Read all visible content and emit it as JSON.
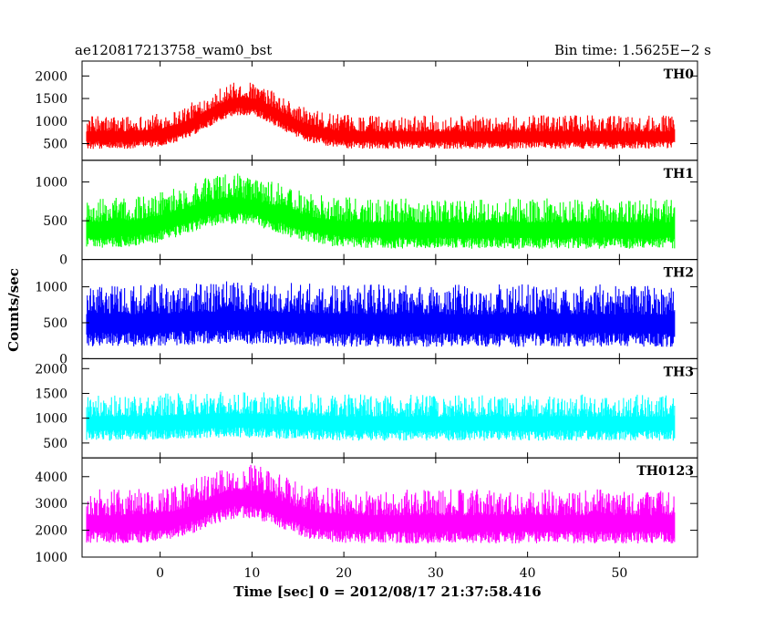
{
  "chart_data": {
    "type": "line",
    "title": "ae120817213758_wam0_bst",
    "bin_time_label": "Bin time: 1.5625E−2 s",
    "xlabel": "Time [sec] 0 = 2012/08/17 21:37:58.416",
    "ylabel": "Counts/sec",
    "xlim": [
      -8.5,
      58.5
    ],
    "x_data_range": [
      -8,
      56
    ],
    "x_ticks": [
      0,
      10,
      20,
      30,
      40,
      50
    ],
    "panels": [
      {
        "name": "TH0",
        "color": "#ff0000",
        "ylim": [
          130,
          2330
        ],
        "y_ticks": [
          500,
          1000,
          1500,
          2000
        ],
        "baseline": 600,
        "noise_amp": 480,
        "peak_amp": 750,
        "peak_center": 9,
        "peak_width": 4
      },
      {
        "name": "TH1",
        "color": "#00ff00",
        "ylim": [
          0,
          1280
        ],
        "y_ticks": [
          0,
          500,
          1000
        ],
        "baseline": 330,
        "noise_amp": 420,
        "peak_amp": 320,
        "peak_center": 8,
        "peak_width": 5
      },
      {
        "name": "TH2",
        "color": "#0000ff",
        "ylim": [
          0,
          1380
        ],
        "y_ticks": [
          0,
          500,
          1000
        ],
        "baseline": 420,
        "noise_amp": 560,
        "peak_amp": 40,
        "peak_center": 8,
        "peak_width": 5
      },
      {
        "name": "TH3",
        "color": "#00ffff",
        "ylim": [
          200,
          2200
        ],
        "y_ticks": [
          500,
          1000,
          1500,
          2000
        ],
        "baseline": 820,
        "noise_amp": 600,
        "peak_amp": 60,
        "peak_center": 8,
        "peak_width": 5
      },
      {
        "name": "TH0123",
        "color": "#ff00ff",
        "ylim": [
          1000,
          4700
        ],
        "y_ticks": [
          1000,
          2000,
          3000,
          4000
        ],
        "baseline": 2100,
        "noise_amp": 1300,
        "peak_amp": 950,
        "peak_center": 9,
        "peak_width": 4
      }
    ]
  }
}
